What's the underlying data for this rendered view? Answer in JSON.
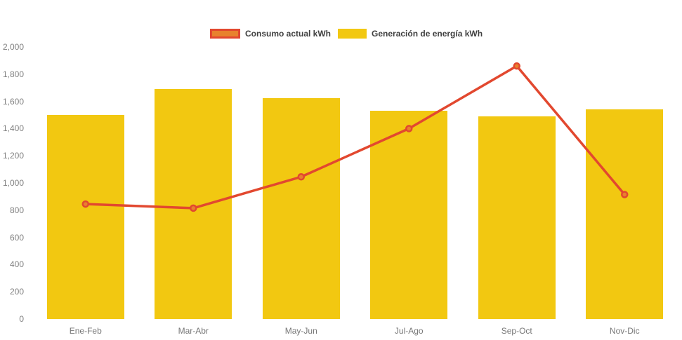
{
  "legend": {
    "items": [
      {
        "label": "Consumo actual kWh",
        "type": "line",
        "swatch_fill": "#E8822D",
        "swatch_border": "#E2482F"
      },
      {
        "label": "Generación de energía kWh",
        "type": "bar",
        "swatch_fill": "#F2C811",
        "swatch_border": null
      }
    ]
  },
  "colors": {
    "bar": "#F2C811",
    "line": "#E2482F",
    "marker_fill": "#E8822D",
    "marker_stroke": "#E2482F",
    "axis_text": "#808080",
    "legend_text": "#404040",
    "background": "#FFFFFF"
  },
  "chart_data": {
    "type": "bar",
    "subtype": "combo-bar-line",
    "title": "",
    "xlabel": "",
    "ylabel": "",
    "categories": [
      "Ene-Feb",
      "Mar-Abr",
      "May-Jun",
      "Jul-Ago",
      "Sep-Oct",
      "Nov-Dic"
    ],
    "series": [
      {
        "name": "Generación de energía kWh",
        "type": "bar",
        "color": "#F2C811",
        "values": [
          1500,
          1690,
          1625,
          1530,
          1490,
          1540
        ]
      },
      {
        "name": "Consumo actual kWh",
        "type": "line",
        "color": "#E2482F",
        "marker_fill": "#E8822D",
        "values": [
          845,
          815,
          1045,
          1400,
          1860,
          915
        ]
      }
    ],
    "ylim": [
      0,
      2000
    ],
    "ytick_step": 200,
    "ytick_labels": [
      "0",
      "200",
      "400",
      "600",
      "800",
      "1,000",
      "1,200",
      "1,400",
      "1,600",
      "1,800",
      "2,000"
    ],
    "grid": false,
    "legend_position": "top"
  }
}
